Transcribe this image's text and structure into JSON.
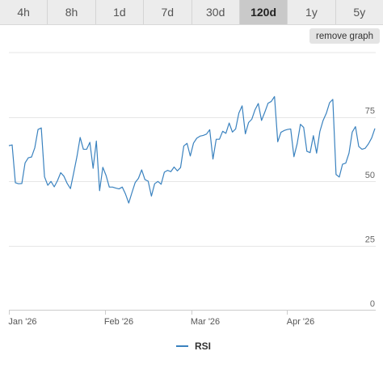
{
  "tabs": [
    {
      "label": "4h",
      "active": false
    },
    {
      "label": "8h",
      "active": false
    },
    {
      "label": "1d",
      "active": false
    },
    {
      "label": "7d",
      "active": false
    },
    {
      "label": "30d",
      "active": false
    },
    {
      "label": "120d",
      "active": true
    },
    {
      "label": "1y",
      "active": false
    },
    {
      "label": "5y",
      "active": false
    }
  ],
  "remove_graph_label": "remove graph",
  "colors": {
    "line": "#3a82bf",
    "grid": "#e6e6e6",
    "active_tab": "#c9c9c9",
    "tab_bg": "#ececec"
  },
  "chart_data": {
    "type": "line",
    "title": "",
    "xlabel": "",
    "ylabel": "",
    "ylim": [
      0,
      100
    ],
    "y_ticks": [
      "0",
      "25",
      "50",
      "75"
    ],
    "x_ticks": [
      "Jan '26",
      "Feb '26",
      "Mar '26",
      "Apr '26"
    ],
    "grid": true,
    "legend_position": "bottom-center",
    "series": [
      {
        "name": "RSI",
        "values": [
          63.8,
          64.1,
          49.4,
          49.0,
          49.1,
          57.1,
          59.1,
          59.4,
          63.0,
          70.1,
          70.7,
          51.7,
          48.4,
          49.9,
          47.8,
          50.2,
          53.3,
          51.9,
          49.1,
          47.1,
          53.2,
          59.5,
          67.0,
          62.4,
          62.4,
          65.1,
          55.0,
          65.6,
          46.3,
          55.4,
          52.2,
          47.7,
          47.7,
          47.3,
          47.0,
          47.7,
          45.0,
          41.5,
          45.6,
          49.5,
          51.1,
          54.4,
          50.6,
          50.0,
          44.2,
          49.0,
          49.9,
          48.8,
          53.5,
          54.2,
          53.7,
          55.5,
          54.0,
          55.3,
          63.7,
          64.7,
          59.8,
          64.8,
          66.7,
          67.5,
          67.8,
          68.3,
          70.0,
          58.6,
          66.3,
          66.3,
          69.4,
          68.6,
          72.6,
          69.1,
          70.3,
          76.5,
          79.3,
          68.4,
          72.8,
          74.1,
          77.8,
          80.2,
          73.6,
          76.8,
          80.3,
          81.0,
          82.9,
          65.3,
          69.0,
          69.7,
          70.1,
          70.3,
          59.5,
          64.6,
          72.1,
          70.9,
          61.6,
          61.1,
          67.7,
          60.9,
          69.3,
          73.6,
          76.4,
          80.5,
          81.8,
          52.6,
          51.6,
          56.6,
          57.0,
          60.9,
          69.1,
          71.2,
          63.5,
          62.4,
          62.8,
          64.5,
          66.8,
          70.5
        ]
      }
    ]
  },
  "legend": {
    "label": "RSI"
  }
}
